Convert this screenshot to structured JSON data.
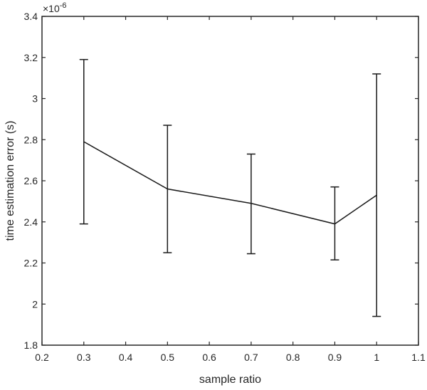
{
  "chart_data": {
    "type": "line",
    "title": "",
    "xlabel": "sample ratio",
    "ylabel": "time estimation error (s)",
    "y_exponent_label": "×10",
    "y_exponent_power": "-6",
    "xlim": [
      0.2,
      1.1
    ],
    "ylim": [
      1.8,
      3.4
    ],
    "xticks": [
      0.2,
      0.3,
      0.4,
      0.5,
      0.6,
      0.7,
      0.8,
      0.9,
      1.0,
      1.1
    ],
    "xtick_labels": [
      "0.2",
      "0.3",
      "0.4",
      "0.5",
      "0.6",
      "0.7",
      "0.8",
      "0.9",
      "1",
      "1.1"
    ],
    "yticks": [
      1.8,
      2.0,
      2.2,
      2.4,
      2.6,
      2.8,
      3.0,
      3.2,
      3.4
    ],
    "ytick_labels": [
      "1.8",
      "2",
      "2.2",
      "2.4",
      "2.6",
      "2.8",
      "3",
      "3.2",
      "3.4"
    ],
    "grid": false,
    "legend": null,
    "series": [
      {
        "name": "time estimation error",
        "color": "#000000",
        "x": [
          0.3,
          0.5,
          0.7,
          0.9,
          1.0
        ],
        "values": [
          2.79,
          2.56,
          2.49,
          2.39,
          2.53
        ],
        "error_upper": [
          3.19,
          2.87,
          2.73,
          2.57,
          3.12
        ],
        "error_lower": [
          2.39,
          2.25,
          2.245,
          2.215,
          1.94
        ]
      }
    ]
  }
}
